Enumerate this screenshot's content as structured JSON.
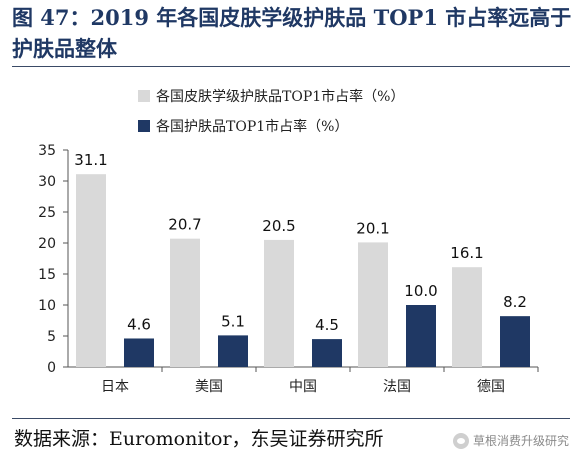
{
  "title": "图 47：2019 年各国皮肤学级护肤品 TOP1 市占率远高于护肤品整体",
  "source": "数据来源：Euromonitor，东吴证券研究所",
  "watermark": "草根消费升级研究",
  "colors": {
    "series1": "#d9d9d9",
    "series2": "#1f3864",
    "title": "#1f3864"
  },
  "chart_data": {
    "type": "bar",
    "categories": [
      "日本",
      "美国",
      "中国",
      "法国",
      "德国"
    ],
    "series": [
      {
        "name": "各国皮肤学级护肤品TOP1市占率（%）",
        "values": [
          31.1,
          20.7,
          20.5,
          20.1,
          16.1
        ],
        "labels": [
          "31.1",
          "20.7",
          "20.5",
          "20.1",
          "16.1"
        ]
      },
      {
        "name": "各国护肤品TOP1市占率（%）",
        "values": [
          4.6,
          5.1,
          4.5,
          10.0,
          8.2
        ],
        "labels": [
          "4.6",
          "5.1",
          "4.5",
          "10.0",
          "8.2"
        ]
      }
    ],
    "yticks": [
      "0",
      "5",
      "10",
      "15",
      "20",
      "25",
      "30",
      "35"
    ],
    "ylim": [
      0,
      35
    ],
    "legend_position": "top-left"
  }
}
